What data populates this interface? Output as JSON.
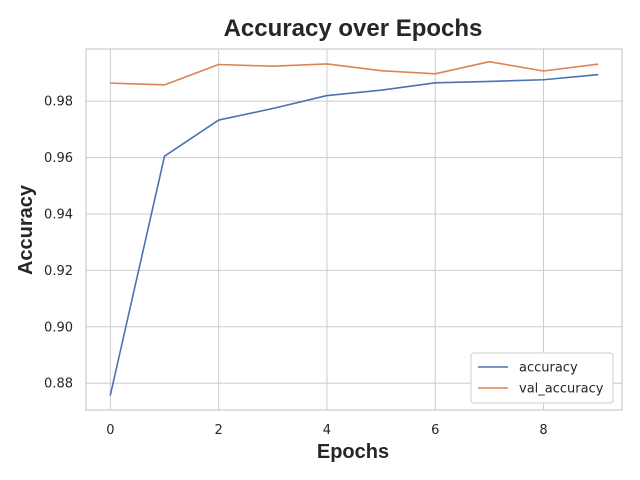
{
  "chart_data": {
    "type": "line",
    "title": "Accuracy over Epochs",
    "xlabel": "Epochs",
    "ylabel": "Accuracy",
    "x": [
      0,
      1,
      2,
      3,
      4,
      5,
      6,
      7,
      8,
      9
    ],
    "xlim": [
      -0.45,
      9.45
    ],
    "ylim": [
      0.8705,
      0.9985
    ],
    "xticks": [
      0,
      2,
      4,
      6,
      8
    ],
    "xtick_labels": [
      "0",
      "2",
      "4",
      "6",
      "8"
    ],
    "yticks": [
      0.88,
      0.9,
      0.92,
      0.94,
      0.96,
      0.98
    ],
    "ytick_labels": [
      "0.88",
      "0.90",
      "0.92",
      "0.94",
      "0.96",
      "0.98"
    ],
    "grid": true,
    "legend_position": "lower-right",
    "series": [
      {
        "name": "accuracy",
        "color": "#4c72b0",
        "values": [
          0.8758,
          0.9605,
          0.9733,
          0.9774,
          0.982,
          0.9839,
          0.9865,
          0.987,
          0.9876,
          0.9894
        ]
      },
      {
        "name": "val_accuracy",
        "color": "#dd8452",
        "values": [
          0.9864,
          0.9858,
          0.993,
          0.9924,
          0.9932,
          0.9908,
          0.9897,
          0.994,
          0.9907,
          0.9931
        ]
      }
    ]
  }
}
